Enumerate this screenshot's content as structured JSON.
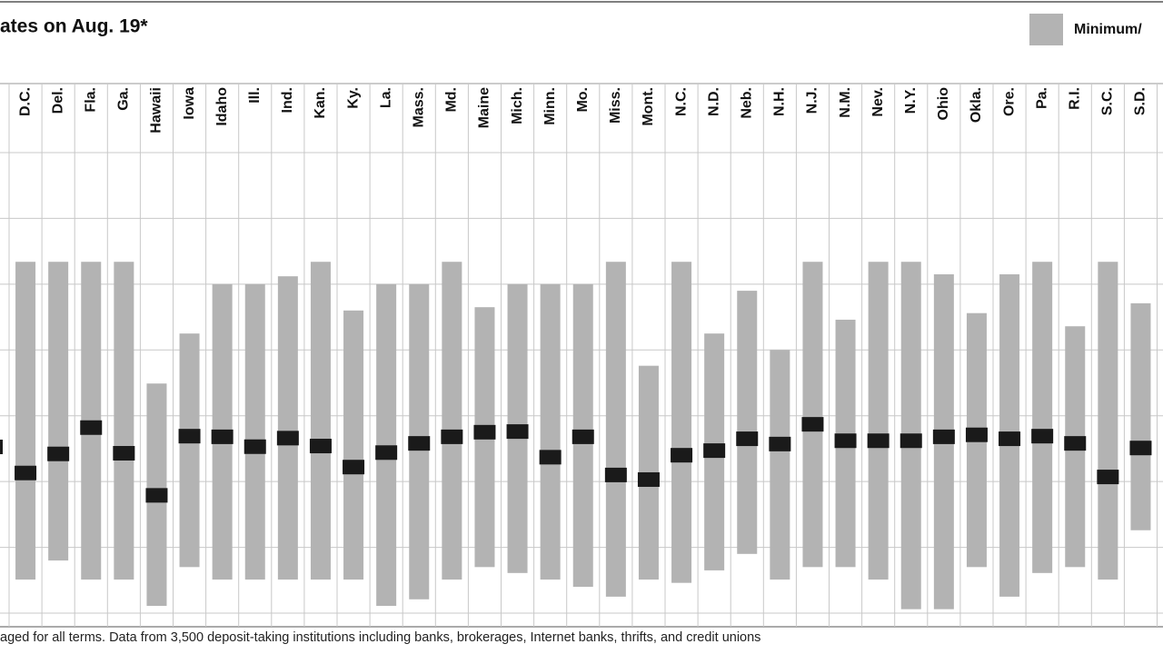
{
  "chart_data": {
    "type": "range",
    "title": "ates on Aug. 19*",
    "footnote": "aged for all terms. Data from 3,500 deposit-taking institutions including banks, brokerages, Internet banks, thrifts, and credit unions",
    "categories": [
      "D.C.",
      "Del.",
      "Fla.",
      "Ga.",
      "Hawaii",
      "Iowa",
      "Idaho",
      "Ill.",
      "Ind.",
      "Kan.",
      "Ky.",
      "La.",
      "Mass.",
      "Md.",
      "Maine",
      "Mich.",
      "Minn.",
      "Mo.",
      "Miss.",
      "Mont.",
      "N.C.",
      "N.D.",
      "Neb.",
      "N.H.",
      "N.J.",
      "N.M.",
      "Nev.",
      "N.Y.",
      "Ohio",
      "Okla.",
      "Ore.",
      "Pa.",
      "R.I.",
      "S.C.",
      "S.D."
    ],
    "range": {
      "name": "Minimum/",
      "color": "#b3b3b3",
      "low": [
        0.51,
        0.8,
        0.51,
        0.51,
        0.11,
        0.7,
        0.51,
        0.51,
        0.51,
        0.51,
        0.51,
        0.11,
        0.21,
        0.51,
        0.7,
        0.61,
        0.51,
        0.4,
        0.25,
        0.51,
        0.46,
        0.65,
        0.9,
        0.51,
        0.7,
        0.7,
        0.51,
        0.06,
        0.06,
        0.7,
        0.25,
        0.61,
        0.7,
        0.51,
        1.26
      ],
      "high": [
        5.34,
        5.34,
        5.34,
        5.34,
        3.49,
        4.25,
        5.0,
        5.0,
        5.12,
        5.34,
        4.6,
        5.0,
        5.0,
        5.34,
        4.65,
        5.0,
        5.0,
        5.0,
        5.34,
        3.76,
        5.34,
        4.25,
        4.9,
        4.0,
        5.34,
        4.46,
        5.34,
        5.34,
        5.15,
        4.56,
        5.15,
        5.34,
        4.36,
        5.34,
        4.71
      ]
    },
    "average": {
      "color": "#1a1a1a",
      "values": [
        2.13,
        2.42,
        2.82,
        2.43,
        1.79,
        2.69,
        2.68,
        2.53,
        2.66,
        2.54,
        2.22,
        2.44,
        2.58,
        2.68,
        2.75,
        2.76,
        2.37,
        2.68,
        2.1,
        2.03,
        2.4,
        2.47,
        2.65,
        2.57,
        2.87,
        2.62,
        2.62,
        2.62,
        2.68,
        2.71,
        2.65,
        2.69,
        2.58,
        2.07,
        2.51
      ]
    },
    "ylim": [
      0,
      7
    ],
    "ygrid": [
      0,
      1,
      2,
      3,
      4,
      5,
      6,
      7
    ]
  }
}
